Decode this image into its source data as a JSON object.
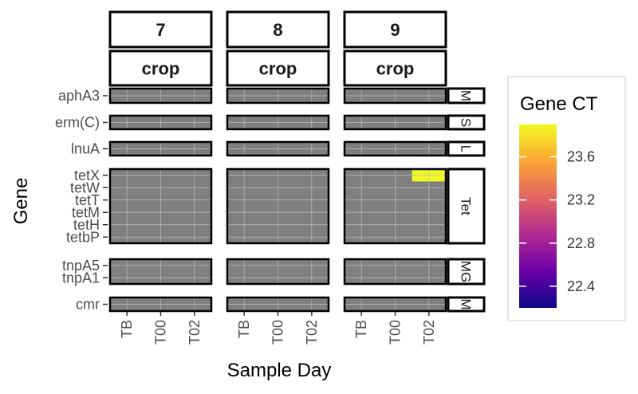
{
  "chart_data": {
    "type": "heatmap",
    "xlabel": "Sample Day",
    "ylabel": "Gene",
    "legend_title": "Gene CT",
    "legend_position": "right",
    "color_scale": {
      "name": "plasma",
      "min": 22.2,
      "max": 23.9,
      "ticks": [
        "22.4",
        "22.8",
        "23.2",
        "23.6"
      ],
      "stops": [
        "#0d0887",
        "#6a00a8",
        "#b12a90",
        "#e16462",
        "#fca636",
        "#f0f921"
      ],
      "na_color": "#7f7f7f"
    },
    "x_categories": [
      "TB",
      "T00",
      "T02"
    ],
    "column_facets": [
      {
        "id": "7",
        "top_label": "7",
        "bottom_label": "crop"
      },
      {
        "id": "8",
        "top_label": "8",
        "bottom_label": "crop"
      },
      {
        "id": "9",
        "top_label": "9",
        "bottom_label": "crop"
      }
    ],
    "row_facets": [
      {
        "label": "M",
        "genes": [
          "aphA3"
        ]
      },
      {
        "label": "S",
        "genes": [
          "erm(C)"
        ]
      },
      {
        "label": "L",
        "genes": [
          "lnuA"
        ]
      },
      {
        "label": "Tet",
        "genes": [
          "tetX",
          "tetW",
          "tetT",
          "tetM",
          "tetH",
          "tetbP"
        ]
      },
      {
        "label": "MG",
        "genes": [
          "tnpA5",
          "tnpA1"
        ]
      },
      {
        "label": "M",
        "genes": [
          "cmr"
        ]
      }
    ],
    "values": [
      {
        "facet": "9",
        "gene": "tetX",
        "x": "T02",
        "value": 23.9
      }
    ]
  }
}
